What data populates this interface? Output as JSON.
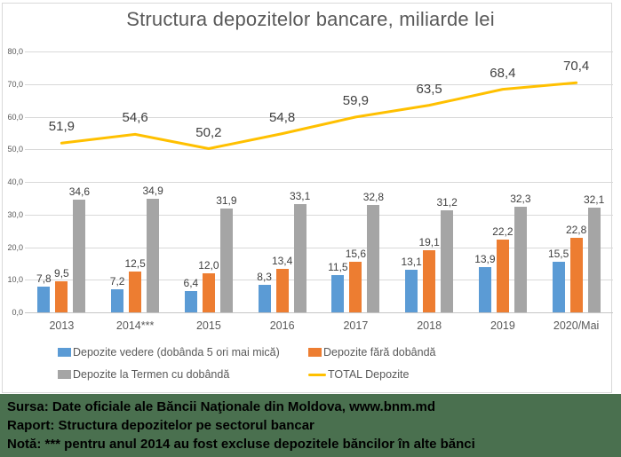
{
  "title": "Structura depozitelor bancare, miliarde lei",
  "chart_data": {
    "type": "bar",
    "subtype": "grouped-bars-with-line-overlay",
    "title": "Structura depozitelor bancare, miliarde lei",
    "categories": [
      "2013",
      "2014***",
      "2015",
      "2016",
      "2017",
      "2018",
      "2019",
      "2020/Mai"
    ],
    "series": [
      {
        "name": "Depozite vedere (dobânda 5 ori mai mică)",
        "kind": "bar",
        "color": "#5B9BD5",
        "values": [
          7.8,
          7.2,
          6.4,
          8.3,
          11.5,
          13.1,
          13.9,
          15.5
        ],
        "labels": [
          "7,8",
          "7,2",
          "6,4",
          "8,3",
          "11,5",
          "13,1",
          "13,9",
          "15,5"
        ]
      },
      {
        "name": "Depozite fără dobândă",
        "kind": "bar",
        "color": "#ED7D31",
        "values": [
          9.5,
          12.5,
          12.0,
          13.4,
          15.6,
          19.1,
          22.2,
          22.8
        ],
        "labels": [
          "9,5",
          "12,5",
          "12,0",
          "13,4",
          "15,6",
          "19,1",
          "22,2",
          "22,8"
        ]
      },
      {
        "name": "Depozite la Termen cu dobândă",
        "kind": "bar",
        "color": "#A5A5A5",
        "values": [
          34.6,
          34.9,
          31.9,
          33.1,
          32.8,
          31.2,
          32.3,
          32.1
        ],
        "labels": [
          "34,6",
          "34,9",
          "31,9",
          "33,1",
          "32,8",
          "31,2",
          "32,3",
          "32,1"
        ]
      },
      {
        "name": "TOTAL Depozite",
        "kind": "line",
        "color": "#FFC000",
        "values": [
          51.9,
          54.6,
          50.2,
          54.8,
          59.9,
          63.5,
          68.4,
          70.4
        ],
        "labels": [
          "51,9",
          "54,6",
          "50,2",
          "54,8",
          "59,9",
          "63,5",
          "68,4",
          "70,4"
        ]
      }
    ],
    "ylim": [
      0,
      80
    ],
    "ytick_step": 10,
    "ytick_labels": [
      "0,0",
      "10,0",
      "20,0",
      "30,0",
      "40,0",
      "50,0",
      "60,0",
      "70,0",
      "80,0"
    ],
    "grid": true,
    "legend_position": "bottom"
  },
  "legend": {
    "rows": [
      [
        {
          "swatch": "square",
          "color": "#5B9BD5",
          "label": "Depozite vedere (dobânda 5 ori mai mică)"
        },
        {
          "swatch": "square",
          "color": "#ED7D31",
          "label": "Depozite fără dobândă"
        }
      ],
      [
        {
          "swatch": "square",
          "color": "#A5A5A5",
          "label": "Depozite la Termen cu dobândă"
        },
        {
          "swatch": "line",
          "color": "#FFC000",
          "label": "TOTAL Depozite"
        }
      ]
    ]
  },
  "footer": {
    "lines": [
      "Sursa: Date oficiale ale Băncii Naţionale din Moldova, www.bnm.md",
      "Raport: Structura depozitelor pe sectorul bancar",
      "Notă: *** pentru anul 2014 au fost excluse depozitele băncilor în alte bănci"
    ],
    "background": "#4A704F",
    "text_color": "#000000"
  },
  "colors": {
    "title_text": "#595959",
    "axis_text": "#595959",
    "bar_label_text": "#404040",
    "line_label_text": "#404040",
    "gridline": "#D9D9D9",
    "chart_border": "#D9D9D9",
    "chart_bg": "#FFFFFF"
  }
}
